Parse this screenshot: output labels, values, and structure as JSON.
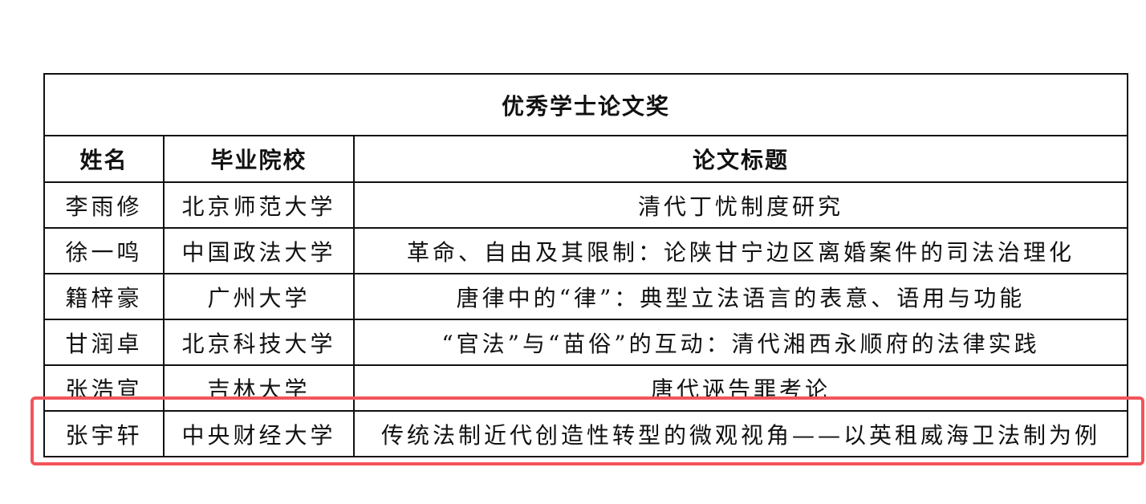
{
  "table": {
    "title": "优秀学士论文奖",
    "headers": [
      "姓名",
      "毕业院校",
      "论文标题"
    ],
    "rows": [
      [
        "李雨修",
        "北京师范大学",
        "清代丁忧制度研究"
      ],
      [
        "徐一鸣",
        "中国政法大学",
        "革命、自由及其限制：论陕甘宁边区离婚案件的司法治理化"
      ],
      [
        "籍梓豪",
        "广州大学",
        "唐律中的“律”：典型立法语言的表意、语用与功能"
      ],
      [
        "甘润卓",
        "北京科技大学",
        "“官法”与“苗俗”的互动：清代湘西永顺府的法律实践"
      ],
      [
        "张浩宣",
        "吉林大学",
        "唐代诬告罪考论"
      ],
      [
        "张宇轩",
        "中央财经大学",
        "传统法制近代创造性转型的微观视角——以英租威海卫法制为例"
      ]
    ]
  },
  "highlight": {
    "row_index": 5,
    "color": "#f2555a"
  }
}
